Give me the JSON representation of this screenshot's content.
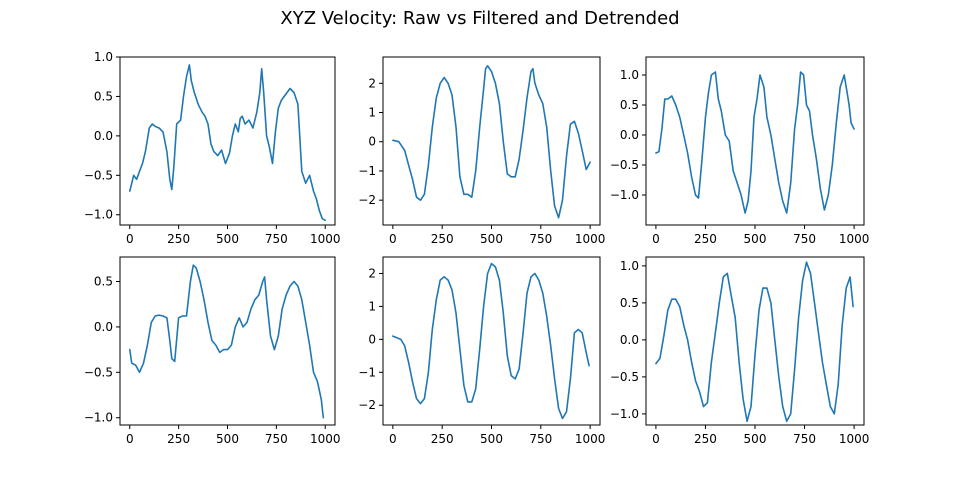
{
  "figure": {
    "title": "XYZ Velocity: Raw vs Filtered and Detrended"
  },
  "chart_data": [
    {
      "type": "line",
      "xlim": [
        -50,
        1050
      ],
      "ylim": [
        -1.13,
        1.0
      ],
      "xticks": [
        0,
        250,
        500,
        750,
        1000
      ],
      "yticks": [
        -1.0,
        -0.5,
        0.0,
        0.5,
        1.0
      ],
      "ytick_labels": [
        "−1.0",
        "−0.5",
        "0.0",
        "0.5",
        "1.0"
      ],
      "grid": false,
      "series": [
        {
          "color": "#1f77b4",
          "x": [
            0,
            20,
            35,
            50,
            65,
            80,
            100,
            115,
            130,
            150,
            170,
            190,
            205,
            215,
            225,
            240,
            260,
            275,
            290,
            305,
            315,
            330,
            350,
            370,
            385,
            400,
            415,
            430,
            450,
            470,
            490,
            510,
            525,
            540,
            555,
            565,
            575,
            590,
            610,
            630,
            650,
            665,
            675,
            685,
            700,
            715,
            730,
            745,
            760,
            775,
            790,
            805,
            820,
            840,
            860,
            880,
            900,
            920,
            940,
            955,
            970,
            985,
            1000
          ],
          "y": [
            -0.7,
            -0.5,
            -0.55,
            -0.45,
            -0.35,
            -0.2,
            0.1,
            0.15,
            0.12,
            0.1,
            0.05,
            -0.2,
            -0.55,
            -0.68,
            -0.4,
            0.15,
            0.2,
            0.5,
            0.75,
            0.9,
            0.7,
            0.55,
            0.4,
            0.3,
            0.25,
            0.15,
            -0.1,
            -0.2,
            -0.25,
            -0.18,
            -0.35,
            -0.22,
            0.0,
            0.15,
            0.05,
            0.22,
            0.25,
            0.15,
            0.2,
            0.1,
            0.3,
            0.55,
            0.85,
            0.55,
            0.0,
            -0.15,
            -0.35,
            0.05,
            0.35,
            0.45,
            0.5,
            0.55,
            0.6,
            0.55,
            0.4,
            -0.45,
            -0.6,
            -0.5,
            -0.7,
            -0.8,
            -0.95,
            -1.05,
            -1.07
          ]
        }
      ]
    },
    {
      "type": "line",
      "xlim": [
        -50,
        1050
      ],
      "ylim": [
        -2.85,
        2.9
      ],
      "xticks": [
        0,
        250,
        500,
        750,
        1000
      ],
      "yticks": [
        -2,
        -1,
        0,
        1,
        2
      ],
      "ytick_labels": [
        "−2",
        "−1",
        "0",
        "1",
        "2"
      ],
      "grid": false,
      "series": [
        {
          "color": "#1f77b4",
          "x": [
            0,
            30,
            60,
            80,
            100,
            120,
            140,
            160,
            180,
            200,
            220,
            240,
            260,
            280,
            300,
            320,
            340,
            360,
            380,
            400,
            420,
            440,
            460,
            470,
            480,
            500,
            520,
            540,
            560,
            580,
            600,
            620,
            640,
            660,
            680,
            700,
            710,
            720,
            740,
            760,
            780,
            800,
            820,
            840,
            860,
            880,
            900,
            920,
            940,
            960,
            980,
            1000
          ],
          "y": [
            0.05,
            0.0,
            -0.3,
            -0.8,
            -1.3,
            -1.9,
            -2.0,
            -1.8,
            -0.8,
            0.5,
            1.5,
            2.0,
            2.2,
            2.0,
            1.6,
            0.5,
            -1.2,
            -1.8,
            -1.8,
            -1.9,
            -1.0,
            0.5,
            1.8,
            2.5,
            2.6,
            2.4,
            2.0,
            1.3,
            0.0,
            -1.1,
            -1.2,
            -1.2,
            -0.6,
            0.4,
            1.5,
            2.4,
            2.5,
            2.0,
            1.6,
            1.3,
            0.5,
            -1.0,
            -2.2,
            -2.6,
            -2.0,
            -0.5,
            0.6,
            0.7,
            0.3,
            -0.3,
            -0.95,
            -0.7
          ]
        }
      ]
    },
    {
      "type": "line",
      "xlim": [
        -50,
        1050
      ],
      "ylim": [
        -1.5,
        1.3
      ],
      "xticks": [
        0,
        250,
        500,
        750,
        1000
      ],
      "yticks": [
        -1.0,
        -0.5,
        0.0,
        0.5,
        1.0
      ],
      "ytick_labels": [
        "−1.0",
        "−0.5",
        "0.0",
        "0.5",
        "1.0"
      ],
      "grid": false,
      "series": [
        {
          "color": "#1f77b4",
          "x": [
            0,
            15,
            30,
            45,
            60,
            80,
            100,
            120,
            140,
            160,
            180,
            200,
            215,
            230,
            250,
            265,
            280,
            300,
            315,
            330,
            350,
            370,
            390,
            410,
            430,
            450,
            465,
            480,
            495,
            510,
            525,
            545,
            560,
            580,
            600,
            620,
            640,
            660,
            680,
            700,
            715,
            730,
            745,
            760,
            775,
            790,
            810,
            830,
            850,
            870,
            890,
            910,
            930,
            950,
            965,
            975,
            985,
            1000
          ],
          "y": [
            -0.3,
            -0.28,
            0.1,
            0.6,
            0.6,
            0.65,
            0.5,
            0.3,
            0.0,
            -0.3,
            -0.7,
            -1.0,
            -1.05,
            -0.5,
            0.3,
            0.7,
            1.0,
            1.05,
            0.6,
            0.4,
            0.0,
            -0.1,
            -0.6,
            -0.8,
            -1.0,
            -1.3,
            -1.1,
            -0.6,
            0.3,
            0.6,
            1.0,
            0.8,
            0.3,
            0.0,
            -0.4,
            -0.8,
            -1.1,
            -1.3,
            -0.8,
            0.1,
            0.5,
            1.05,
            1.0,
            0.5,
            0.4,
            0.0,
            -0.4,
            -0.9,
            -1.25,
            -1.0,
            -0.5,
            0.2,
            0.8,
            1.0,
            0.7,
            0.5,
            0.2,
            0.1
          ]
        }
      ]
    },
    {
      "type": "line",
      "xlim": [
        -50,
        1050
      ],
      "ylim": [
        -1.08,
        0.77
      ],
      "xticks": [
        0,
        250,
        500,
        750,
        1000
      ],
      "yticks": [
        -1.0,
        -0.5,
        0.0,
        0.5
      ],
      "ytick_labels": [
        "−1.0",
        "−0.5",
        "0.0",
        "0.5"
      ],
      "grid": false,
      "series": [
        {
          "color": "#1f77b4",
          "x": [
            0,
            10,
            30,
            50,
            70,
            90,
            110,
            130,
            150,
            170,
            190,
            205,
            215,
            230,
            250,
            270,
            290,
            310,
            325,
            340,
            360,
            380,
            400,
            420,
            440,
            460,
            480,
            500,
            520,
            540,
            560,
            580,
            600,
            620,
            640,
            660,
            680,
            690,
            700,
            720,
            740,
            760,
            780,
            800,
            820,
            840,
            860,
            880,
            900,
            920,
            940,
            960,
            980,
            990
          ],
          "y": [
            -0.25,
            -0.4,
            -0.42,
            -0.5,
            -0.4,
            -0.2,
            0.05,
            0.12,
            0.13,
            0.12,
            0.1,
            -0.15,
            -0.35,
            -0.38,
            0.1,
            0.12,
            0.12,
            0.5,
            0.68,
            0.65,
            0.5,
            0.3,
            0.05,
            -0.15,
            -0.2,
            -0.28,
            -0.25,
            -0.25,
            -0.2,
            0.0,
            0.1,
            0.0,
            0.05,
            0.2,
            0.3,
            0.35,
            0.5,
            0.55,
            0.3,
            -0.1,
            -0.25,
            -0.1,
            0.2,
            0.35,
            0.45,
            0.5,
            0.45,
            0.3,
            0.05,
            -0.2,
            -0.5,
            -0.6,
            -0.8,
            -1.0
          ]
        }
      ]
    },
    {
      "type": "line",
      "xlim": [
        -50,
        1050
      ],
      "ylim": [
        -2.6,
        2.5
      ],
      "xticks": [
        0,
        250,
        500,
        750,
        1000
      ],
      "yticks": [
        -2,
        -1,
        0,
        1,
        2
      ],
      "ytick_labels": [
        "−2",
        "−1",
        "0",
        "1",
        "2"
      ],
      "grid": false,
      "series": [
        {
          "color": "#1f77b4",
          "x": [
            0,
            20,
            40,
            60,
            80,
            100,
            120,
            140,
            160,
            180,
            200,
            220,
            240,
            260,
            280,
            300,
            320,
            340,
            360,
            380,
            400,
            420,
            440,
            460,
            480,
            500,
            520,
            540,
            560,
            580,
            600,
            620,
            640,
            660,
            680,
            700,
            720,
            740,
            760,
            780,
            800,
            820,
            840,
            860,
            880,
            900,
            920,
            940,
            960,
            980,
            995
          ],
          "y": [
            0.1,
            0.05,
            0.0,
            -0.2,
            -0.7,
            -1.3,
            -1.8,
            -1.95,
            -1.8,
            -1.0,
            0.3,
            1.2,
            1.8,
            1.9,
            1.8,
            1.5,
            0.8,
            -0.3,
            -1.4,
            -1.9,
            -1.9,
            -1.5,
            -0.3,
            1.0,
            2.0,
            2.3,
            2.2,
            1.8,
            0.8,
            -0.5,
            -1.1,
            -1.2,
            -0.9,
            0.2,
            1.4,
            1.9,
            2.0,
            1.8,
            1.4,
            0.7,
            -0.2,
            -1.2,
            -2.1,
            -2.4,
            -2.2,
            -1.2,
            0.2,
            0.3,
            0.2,
            -0.4,
            -0.8
          ]
        }
      ]
    },
    {
      "type": "line",
      "xlim": [
        -50,
        1050
      ],
      "ylim": [
        -1.15,
        1.12
      ],
      "xticks": [
        0,
        250,
        500,
        750,
        1000
      ],
      "yticks": [
        -1.0,
        -0.5,
        0.0,
        0.5,
        1.0
      ],
      "ytick_labels": [
        "−1.0",
        "−0.5",
        "0.0",
        "0.5",
        "1.0"
      ],
      "grid": false,
      "series": [
        {
          "color": "#1f77b4",
          "x": [
            0,
            20,
            40,
            60,
            80,
            100,
            120,
            140,
            160,
            180,
            200,
            220,
            240,
            260,
            280,
            300,
            320,
            340,
            360,
            380,
            400,
            420,
            440,
            460,
            480,
            500,
            520,
            540,
            560,
            580,
            600,
            620,
            640,
            660,
            680,
            700,
            720,
            740,
            760,
            780,
            800,
            820,
            840,
            860,
            880,
            900,
            920,
            940,
            960,
            980,
            995
          ],
          "y": [
            -0.32,
            -0.25,
            0.05,
            0.4,
            0.55,
            0.55,
            0.45,
            0.2,
            0.0,
            -0.3,
            -0.55,
            -0.7,
            -0.9,
            -0.85,
            -0.3,
            0.1,
            0.5,
            0.85,
            0.9,
            0.6,
            0.3,
            -0.3,
            -0.8,
            -1.1,
            -0.9,
            -0.2,
            0.4,
            0.7,
            0.7,
            0.5,
            0.0,
            -0.5,
            -0.9,
            -1.1,
            -1.0,
            -0.4,
            0.3,
            0.8,
            1.05,
            0.9,
            0.5,
            0.1,
            -0.3,
            -0.6,
            -0.9,
            -1.0,
            -0.6,
            0.2,
            0.7,
            0.85,
            0.45
          ]
        }
      ]
    }
  ]
}
